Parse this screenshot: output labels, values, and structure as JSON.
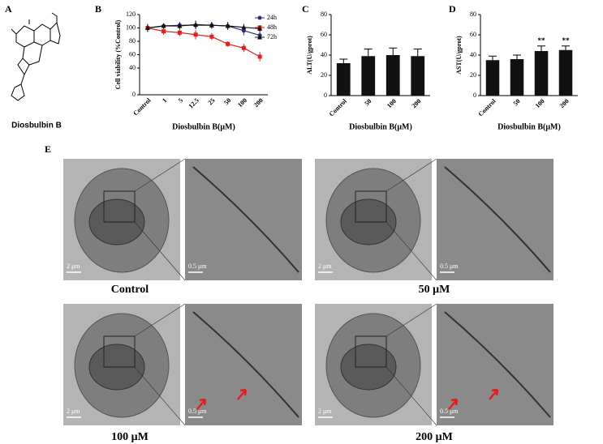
{
  "panel_labels": [
    "A",
    "B",
    "C",
    "D",
    "E"
  ],
  "compound_name": "Diosbulbin B",
  "micrographs": [
    {
      "caption": "Control",
      "scale_whole": "2 μm",
      "scale_zoom": "0.5 μm"
    },
    {
      "caption": "50 μM",
      "scale_whole": "2 μm",
      "scale_zoom": "0.5 μm"
    },
    {
      "caption": "100 μM",
      "scale_whole": "2 μm",
      "scale_zoom": "0.5 μm"
    },
    {
      "caption": "200 μM",
      "scale_whole": "2 μm",
      "scale_zoom": "0.5 μm"
    }
  ],
  "chart_data": [
    {
      "type": "line",
      "y_label": "Cell viability (%Control)",
      "x_label": "Diosbulbin B(μM)",
      "categories": [
        "Control",
        "1",
        "5",
        "12.5",
        "25",
        "50",
        "100",
        "200"
      ],
      "ylim": [
        0,
        120
      ],
      "yticks": [
        0,
        40,
        60,
        80,
        100,
        120
      ],
      "legend": "upper right",
      "series": [
        {
          "name": "24h",
          "color": "#2e2e7a",
          "marker": "circle",
          "values": [
            100,
            103,
            104,
            104,
            104,
            103,
            96,
            89
          ],
          "errors": [
            6,
            4,
            5,
            6,
            5,
            6,
            7,
            5
          ]
        },
        {
          "name": "48h",
          "color": "#e02020",
          "marker": "square",
          "values": [
            100,
            95,
            93,
            90,
            87,
            76,
            70,
            57
          ],
          "errors": [
            6,
            5,
            5,
            7,
            5,
            4,
            6,
            7
          ]
        },
        {
          "name": "72h",
          "color": "#111111",
          "marker": "triangle",
          "values": [
            100,
            103,
            103,
            105,
            104,
            103,
            101,
            99
          ],
          "errors": [
            5,
            4,
            5,
            6,
            5,
            5,
            5,
            5
          ]
        }
      ]
    },
    {
      "type": "bar",
      "y_label": "ALT(U/gprot)",
      "x_label": "Diosbulbin B(μM)",
      "categories": [
        "Control",
        "50",
        "100",
        "200"
      ],
      "values": [
        32,
        39,
        40,
        39
      ],
      "errors": [
        4,
        7,
        7,
        7
      ],
      "color": "#111111",
      "ylim": [
        0,
        80
      ],
      "yticks": [
        0,
        20,
        40,
        60,
        80
      ]
    },
    {
      "type": "bar",
      "y_label": "AST(U/gprot)",
      "x_label": "Diosbulbin B(μM)",
      "categories": [
        "Control",
        "50",
        "100",
        "200"
      ],
      "values": [
        35,
        36,
        44,
        45
      ],
      "errors": [
        4,
        4,
        5,
        4
      ],
      "color": "#111111",
      "ylim": [
        0,
        80
      ],
      "yticks": [
        0,
        20,
        40,
        60,
        80
      ],
      "significance": [
        {
          "category": "100",
          "label": "**"
        },
        {
          "category": "200",
          "label": "**"
        }
      ]
    }
  ]
}
